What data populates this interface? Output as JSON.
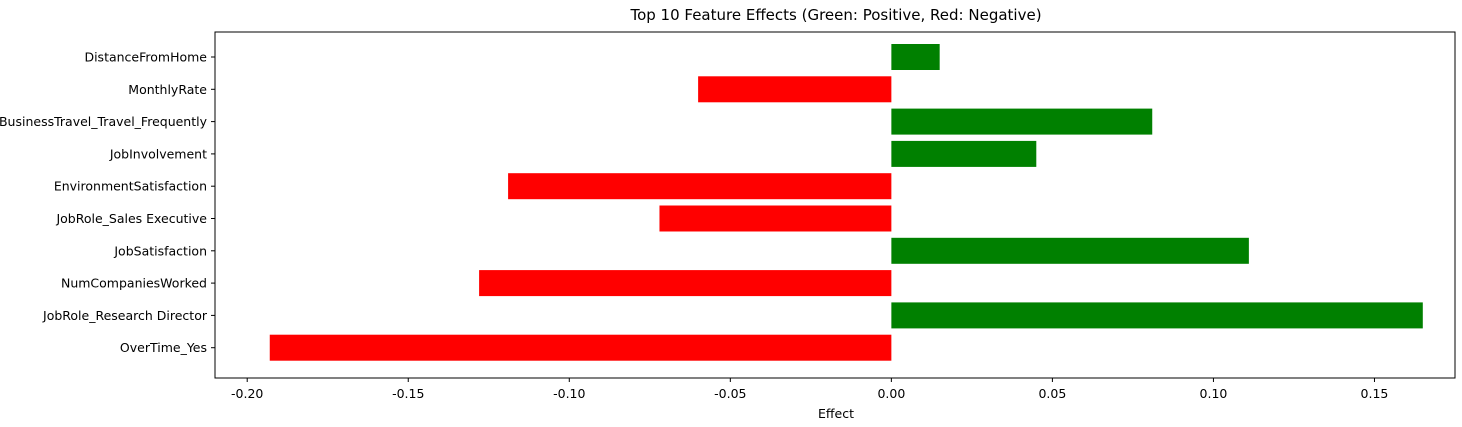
{
  "chart_data": {
    "type": "bar",
    "orientation": "horizontal",
    "title": "Top 10 Feature Effects (Green: Positive, Red: Negative)",
    "xlabel": "Effect",
    "ylabel": "",
    "xlim": [
      -0.21,
      0.175
    ],
    "xticks": [
      -0.2,
      -0.15,
      -0.1,
      -0.05,
      0.0,
      0.05,
      0.1,
      0.15
    ],
    "xtick_labels": [
      "-0.20",
      "-0.15",
      "-0.10",
      "-0.05",
      "0.00",
      "0.05",
      "0.10",
      "0.15"
    ],
    "categories": [
      "DistanceFromHome",
      "MonthlyRate",
      "BusinessTravel_Travel_Frequently",
      "JobInvolvement",
      "EnvironmentSatisfaction",
      "JobRole_Sales Executive",
      "JobSatisfaction",
      "NumCompaniesWorked",
      "JobRole_Research Director",
      "OverTime_Yes"
    ],
    "values": [
      0.015,
      -0.06,
      0.081,
      0.045,
      -0.119,
      -0.072,
      0.111,
      -0.128,
      0.165,
      -0.193
    ],
    "grid": false,
    "legend": "none",
    "colors": {
      "positive": "#008000",
      "negative": "#ff0000",
      "axis": "#000000"
    }
  }
}
